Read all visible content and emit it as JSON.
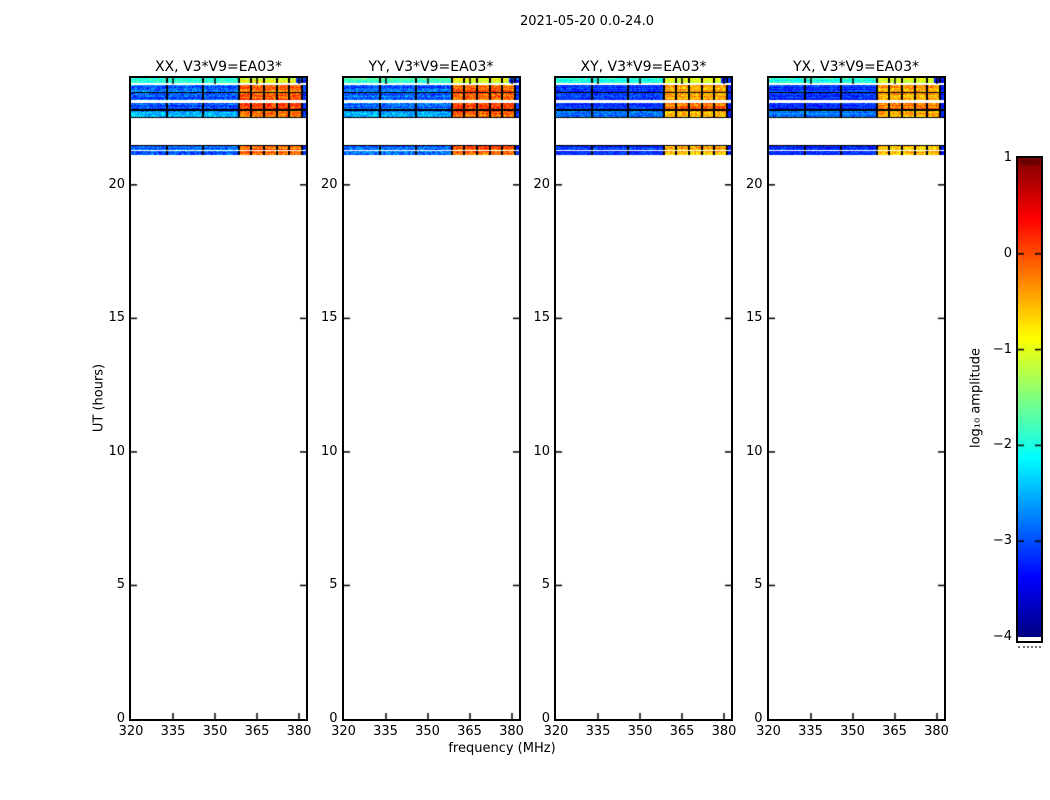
{
  "chart_data": {
    "type": "heatmap",
    "title": "2021-05-20 0.0-24.0",
    "xlabel": "frequency (MHz)",
    "ylabel": "UT (hours)",
    "xlim": [
      320,
      382.5
    ],
    "ylim": [
      0,
      24
    ],
    "xticks": [
      320,
      335,
      350,
      365,
      380
    ],
    "yticks": [
      0,
      5,
      10,
      15,
      20
    ],
    "grid": false,
    "panels": [
      {
        "title": "XX, V3*V9=EA03*",
        "pol": "parallel"
      },
      {
        "title": "YY, V3*V9=EA03*",
        "pol": "parallel"
      },
      {
        "title": "XY, V3*V9=EA03*",
        "pol": "cross"
      },
      {
        "title": "YX, V3*V9=EA03*",
        "pol": "cross"
      }
    ],
    "colorbar": {
      "label": "log₁₀ amplitude",
      "colormap": "jet",
      "vmin": -4,
      "vmax": 1,
      "tick_values": [
        1,
        0,
        -1,
        -2,
        -3,
        -4
      ],
      "tick_labels": [
        "1",
        "0",
        "−1",
        "−2",
        "−3",
        "−4"
      ]
    },
    "levels": {
      "parallel": {
        "low": [
          -2.9,
          0.45
        ],
        "strip": [
          -1.85,
          0.3
        ],
        "high": [
          -0.15,
          0.4
        ],
        "high2": [
          -1.0,
          0.35
        ],
        "edge": [
          -3.15,
          0.3
        ]
      },
      "cross": {
        "low": [
          -3.15,
          0.35
        ],
        "strip": [
          -2.0,
          0.3
        ],
        "high": [
          -0.5,
          0.4
        ],
        "high2": [
          -1.05,
          0.3
        ],
        "edge": [
          -3.25,
          0.25
        ]
      }
    },
    "band_profiles": {
      "strip": [
        {
          "f0": 320,
          "f1": 358.5,
          "level": "strip"
        },
        {
          "f0": 358.5,
          "f1": 379,
          "level": "high2"
        },
        {
          "f0": 379,
          "f1": 382.5,
          "level": "edge"
        }
      ],
      "main": [
        {
          "f0": 320,
          "f1": 358.5,
          "level": "low"
        },
        {
          "f0": 358.5,
          "f1": 381,
          "level": "high"
        },
        {
          "f0": 381,
          "f1": 382.5,
          "level": "edge"
        }
      ]
    },
    "bands": [
      {
        "t0": 23.83,
        "t1": 24.0,
        "kind": "data",
        "profile": "strip"
      },
      {
        "t0": 23.49,
        "t1": 23.72,
        "kind": "data",
        "profile": "main"
      },
      {
        "t0": 23.42,
        "t1": 23.49,
        "kind": "black"
      },
      {
        "t0": 23.16,
        "t1": 23.42,
        "kind": "data",
        "profile": "main"
      },
      {
        "t0": 22.84,
        "t1": 23.08,
        "kind": "data",
        "profile": "main",
        "deltas": {
          "high": 0.3
        }
      },
      {
        "t0": 22.77,
        "t1": 22.84,
        "kind": "black"
      },
      {
        "t0": 22.54,
        "t1": 22.77,
        "kind": "data",
        "profile": "main",
        "deltas": {
          "low": 0.35
        }
      },
      {
        "t0": 22.49,
        "t1": 22.54,
        "kind": "black"
      },
      {
        "t0": 21.44,
        "t1": 21.51,
        "kind": "black"
      },
      {
        "t0": 21.31,
        "t1": 21.44,
        "kind": "data",
        "profile": "main"
      },
      {
        "t0": 21.12,
        "t1": 21.25,
        "kind": "data",
        "profile": "main",
        "deltas": {
          "high": -0.1
        }
      }
    ],
    "vlines_mhz": [
      332.8,
      345.6,
      358.4,
      363,
      367.5,
      372,
      376.5,
      381
    ]
  }
}
